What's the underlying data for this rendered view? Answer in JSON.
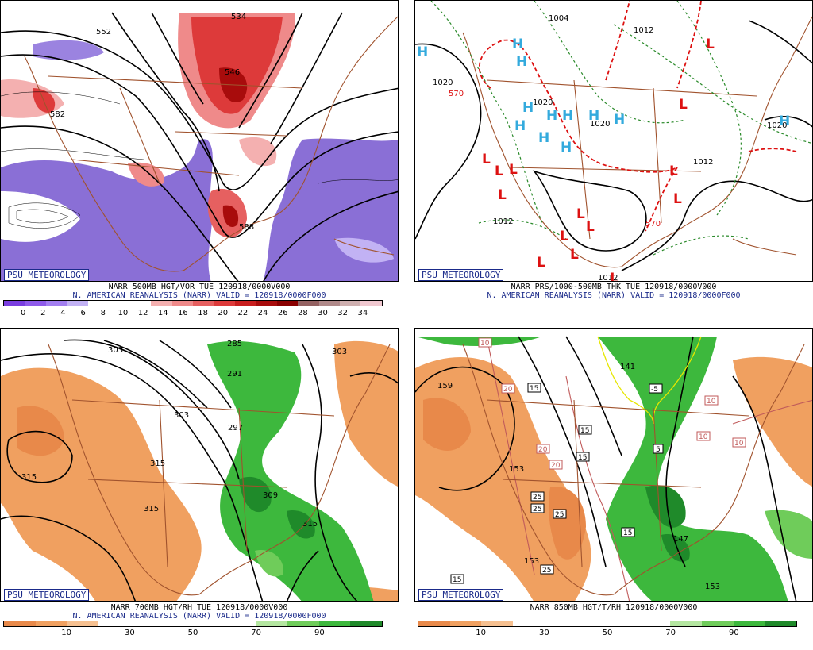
{
  "badge": "PSU METEOROLOGY",
  "colors": {
    "coast": "#a0522d",
    "contour": "#000000",
    "vort_low": "#8a6fd6",
    "vort_high": "#d8323c",
    "dry": "#f0a060",
    "moist": "#3db83d",
    "pressure_high": "#33aadd",
    "pressure_low": "#dd1111"
  },
  "panels": [
    {
      "title": "NARR 500MB HGT/VOR TUE 120918/0000V000",
      "subtitle": "N. AMERICAN REANALYSIS (NARR) VALID = 120918/0000F000",
      "colorbar": [
        "#7a3ee0",
        "#8f5bea",
        "#a37ff0",
        "#c2b2f4",
        "#ffffff",
        "#ffffff",
        "#ffffff",
        "#f4b0b0",
        "#ef8a8a",
        "#e66060",
        "#dd3a3a",
        "#c81e1e",
        "#a80c0c",
        "#8a0000",
        "#946262",
        "#b08a8a",
        "#cfb0b0",
        "#f0c8d0"
      ],
      "ticks": [
        "0",
        "2",
        "4",
        "6",
        "8",
        "10",
        "12",
        "14",
        "16",
        "18",
        "20",
        "22",
        "24",
        "26",
        "28",
        "30",
        "32",
        "34"
      ],
      "labels": [
        "552",
        "546",
        "534",
        "582",
        "588"
      ]
    },
    {
      "title": "NARR PRS/1000-500MB THK TUE 120918/0000V000",
      "subtitle": "N. AMERICAN REANALYSIS (NARR) VALID = 120918/0000F000",
      "labels": [
        "1004",
        "1012",
        "1020",
        "1020",
        "1020",
        "1020",
        "570",
        "570",
        "1012",
        "1012",
        "1012"
      ],
      "highs": [
        "H",
        "H",
        "H",
        "H",
        "H",
        "H",
        "H",
        "H",
        "H",
        "H",
        "H",
        "H"
      ],
      "lows": [
        "L",
        "L",
        "L",
        "L",
        "L",
        "L",
        "L",
        "L",
        "L",
        "L",
        "L",
        "L",
        "L",
        "L"
      ]
    },
    {
      "title": "NARR 700MB HGT/RH TUE 120918/0000V000",
      "subtitle": "N. AMERICAN REANALYSIS (NARR) VALID = 120918/0000F000",
      "colorbar": [
        "#e8894a",
        "#f0a060",
        "#f6c090",
        "#ffffff",
        "#ffffff",
        "#ffffff",
        "#ffffff",
        "#ffffff",
        "#b4e6a0",
        "#6fcc5a",
        "#3db83d",
        "#1f8a2a"
      ],
      "ticks": [
        "10",
        "30",
        "50",
        "70",
        "90"
      ],
      "labels": [
        "303",
        "285",
        "303",
        "291",
        "297",
        "303",
        "315",
        "315",
        "309",
        "315",
        "315"
      ]
    },
    {
      "title": "NARR 850MB HGT/T/RH 120918/0000V000",
      "colorbar": [
        "#e8894a",
        "#f0a060",
        "#f6c090",
        "#ffffff",
        "#ffffff",
        "#ffffff",
        "#ffffff",
        "#ffffff",
        "#b4e6a0",
        "#6fcc5a",
        "#3db83d",
        "#1f8a2a"
      ],
      "ticks": [
        "10",
        "30",
        "50",
        "70",
        "90"
      ],
      "labels": [
        "159",
        "141",
        "153",
        "147",
        "153",
        "153"
      ],
      "boxes": [
        "10",
        "20",
        "15",
        "20",
        "15",
        "25",
        "25",
        "20",
        "25",
        "15",
        "25",
        "15",
        "10",
        "10",
        "10",
        "5",
        "15",
        "-5"
      ]
    }
  ]
}
